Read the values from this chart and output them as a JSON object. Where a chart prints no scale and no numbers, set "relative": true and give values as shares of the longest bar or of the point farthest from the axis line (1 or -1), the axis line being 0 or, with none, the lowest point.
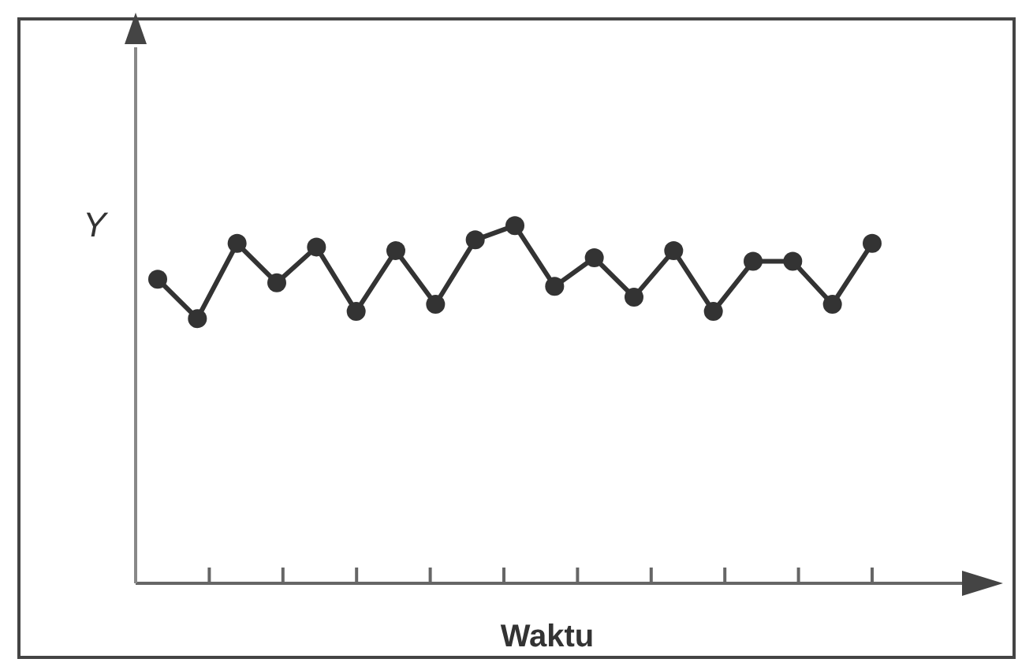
{
  "chart_data": {
    "type": "line",
    "relative": true,
    "xlabel": "Waktu",
    "ylabel": "Y",
    "marker": "circle",
    "line_style": "solid",
    "categories": [
      null,
      null,
      null,
      null,
      null,
      null,
      null,
      null,
      null,
      null,
      null,
      null,
      null,
      null,
      null,
      null,
      null,
      null,
      null
    ],
    "series": [
      {
        "color": "#333333",
        "values": [
          0.85,
          0.74,
          0.95,
          0.84,
          0.94,
          0.76,
          0.93,
          0.78,
          0.96,
          1,
          0.83,
          0.91,
          0.8,
          0.93,
          0.76,
          0.9,
          0.9,
          0.78,
          0.95
        ]
      }
    ]
  }
}
